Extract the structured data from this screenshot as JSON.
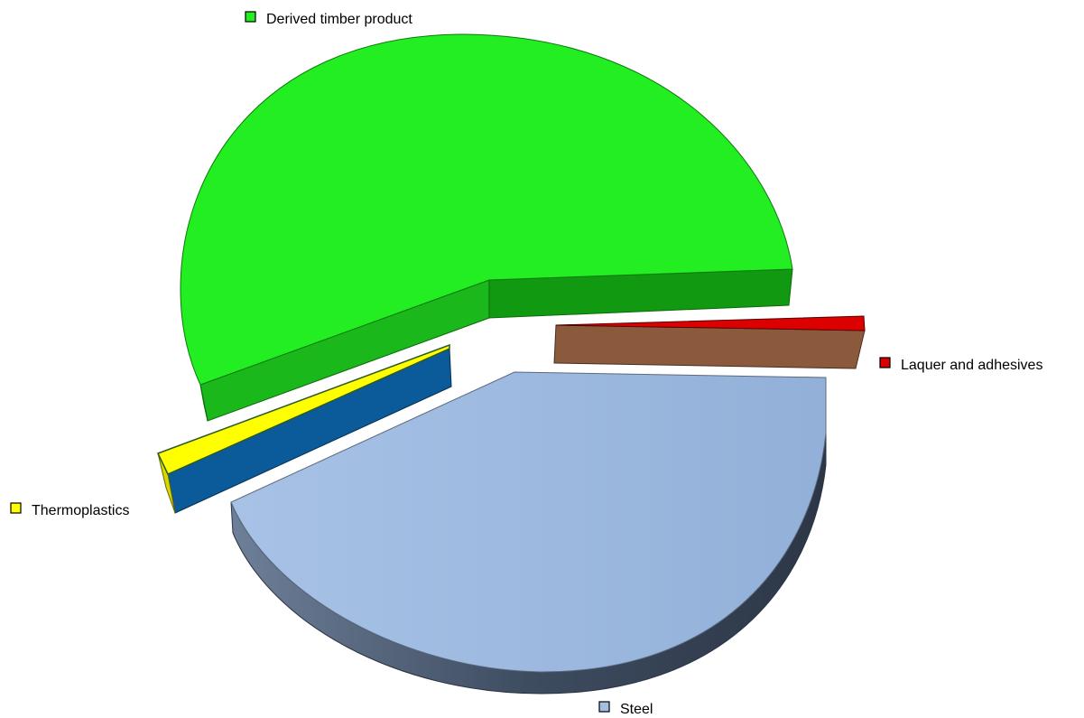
{
  "chart_data": {
    "type": "pie",
    "title": "",
    "slices": [
      {
        "label": "Derived timber product",
        "value": 56.5,
        "color": "#22ee22",
        "side_color": "#119911"
      },
      {
        "label": "Laquer and adhesives",
        "value": 1.0,
        "color": "#dd0000",
        "side_color": "#8b5a3c"
      },
      {
        "label": "Steel",
        "value": 40.3,
        "color": "#a4bee2",
        "side_color": "#4a5a70"
      },
      {
        "label": "Thermoplastics",
        "value": 2.2,
        "color": "#ffff00",
        "side_color": "#0b5b9a"
      }
    ],
    "legend_position": "labels beside slices",
    "grid": false
  }
}
